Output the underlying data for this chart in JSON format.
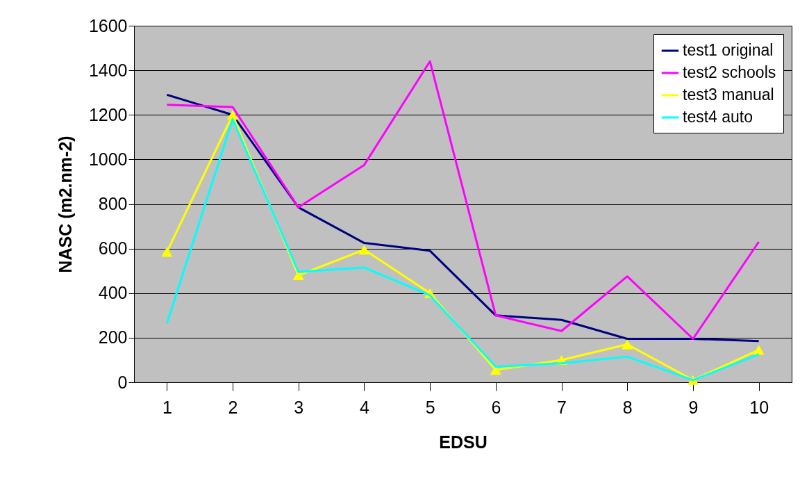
{
  "chart_data": {
    "type": "line",
    "xlabel": "EDSU",
    "ylabel": "NASC (m2.nm-2)",
    "categories": [
      "1",
      "2",
      "3",
      "4",
      "5",
      "6",
      "7",
      "8",
      "9",
      "10"
    ],
    "series": [
      {
        "name": "test1 original",
        "color": "#000080",
        "marker": "none",
        "values": [
          1290,
          1200,
          785,
          625,
          590,
          300,
          280,
          195,
          195,
          185
        ]
      },
      {
        "name": "test2 schools",
        "color": "#ff00ff",
        "marker": "none",
        "values": [
          1245,
          1235,
          785,
          975,
          1440,
          300,
          230,
          475,
          195,
          630
        ]
      },
      {
        "name": "test3 manual",
        "color": "#ffff00",
        "marker": "triangle",
        "values": [
          585,
          1200,
          480,
          595,
          400,
          55,
          100,
          170,
          10,
          145
        ]
      },
      {
        "name": "test4 auto",
        "color": "#00ffff",
        "marker": "none",
        "values": [
          265,
          1180,
          495,
          515,
          390,
          70,
          85,
          115,
          10,
          125
        ]
      }
    ],
    "ylim": [
      0,
      1600
    ],
    "yticks": [
      0,
      200,
      400,
      600,
      800,
      1000,
      1200,
      1400,
      1600
    ],
    "grid": "y",
    "legend": "top right",
    "line_style": "solid"
  }
}
